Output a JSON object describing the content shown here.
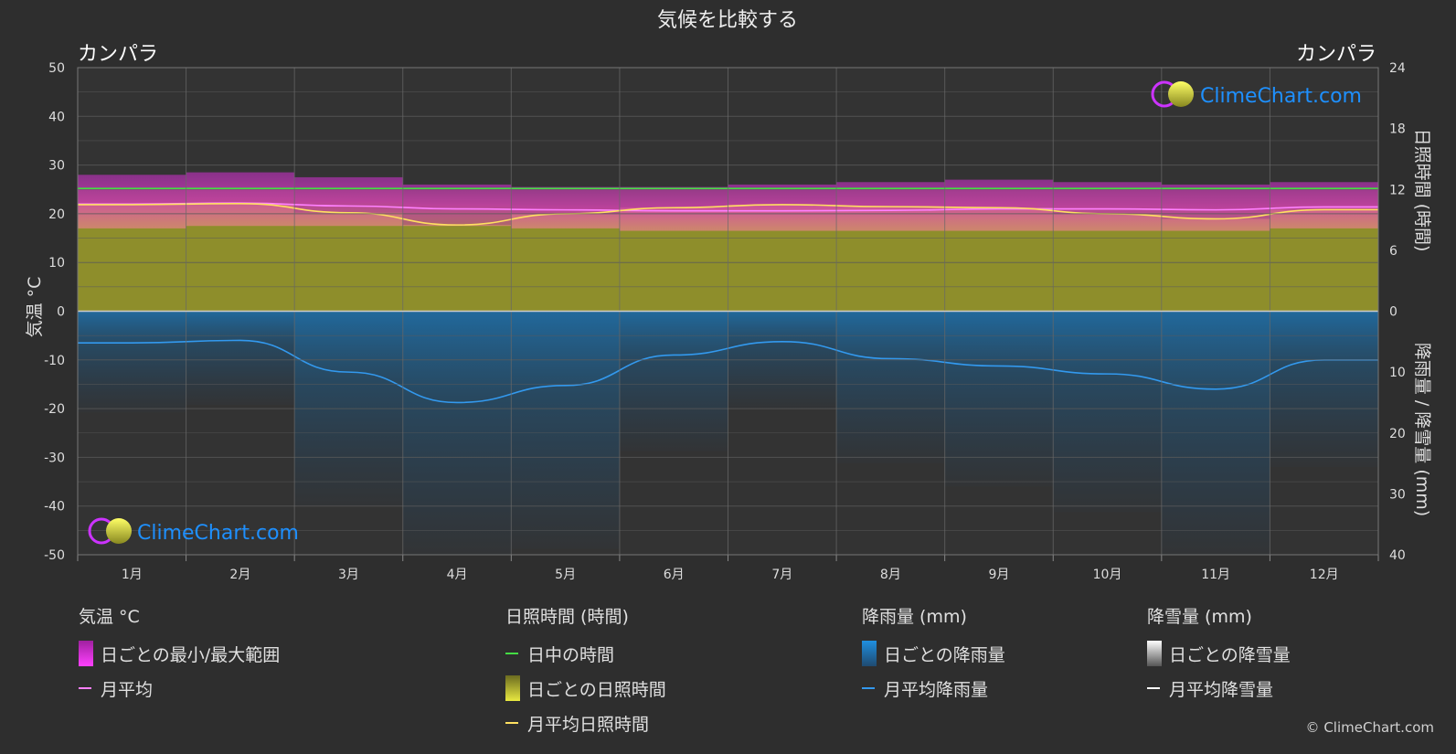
{
  "title": "気候を比較する",
  "location_left": "カンパラ",
  "location_right": "カンパラ",
  "axes": {
    "left_label": "気温 °C",
    "right_top_label": "日照時間 (時間)",
    "right_bottom_label": "降雨量 / 降雪量 (mm)",
    "left_ticks": [
      "50",
      "40",
      "30",
      "20",
      "10",
      "0",
      "-10",
      "-20",
      "-30",
      "-40",
      "-50"
    ],
    "right_top_ticks": [
      "24",
      "18",
      "12",
      "6",
      "0"
    ],
    "right_bottom_ticks": [
      "10",
      "20",
      "30",
      "40"
    ]
  },
  "brand": {
    "name": "ClimeChart.com",
    "copyright": "© ClimeChart.com",
    "accent": "#1e90ff"
  },
  "colors": {
    "background": "#2e2e2e",
    "temp_range": "#e040e0",
    "temp_avg": "#ff80ff",
    "daylight": "#44dd44",
    "sunshine": "#b5b52e",
    "sunshine_avg": "#ffe060",
    "rain": "#1f6fa8",
    "rain_avg": "#3399ee",
    "snow_avg": "#ffffff"
  },
  "chart_data": {
    "type": "area",
    "categories": [
      "1月",
      "2月",
      "3月",
      "4月",
      "5月",
      "6月",
      "7月",
      "8月",
      "9月",
      "10月",
      "11月",
      "12月"
    ],
    "temp_ylim": [
      -50,
      50
    ],
    "sun_ylim": [
      0,
      24
    ],
    "rain_ylim": [
      0,
      40
    ],
    "grid": true,
    "series": [
      {
        "name": "月平均",
        "axis": "temp",
        "values": [
          22.0,
          22.2,
          21.6,
          21.0,
          20.8,
          20.6,
          20.6,
          20.7,
          21.0,
          21.0,
          20.8,
          21.4
        ]
      },
      {
        "name": "日ごとの最小/最大範囲",
        "axis": "temp",
        "min": [
          17,
          17.5,
          17.5,
          17.5,
          17,
          16.5,
          16.5,
          16.5,
          16.5,
          16.5,
          16.5,
          17
        ],
        "max": [
          28,
          28.5,
          27.5,
          26,
          25.5,
          25.5,
          26,
          26.5,
          27,
          26.5,
          26,
          26.5
        ]
      },
      {
        "name": "日中の時間",
        "axis": "sun",
        "values": [
          12.1,
          12.1,
          12.1,
          12.1,
          12.1,
          12.1,
          12.1,
          12.1,
          12.1,
          12.1,
          12.1,
          12.1
        ]
      },
      {
        "name": "月平均日照時間",
        "axis": "sun",
        "values": [
          10.5,
          10.6,
          9.7,
          8.5,
          9.6,
          10.2,
          10.5,
          10.3,
          10.2,
          9.6,
          9.1,
          10.0
        ]
      },
      {
        "name": "月平均降雨量",
        "axis": "rain",
        "values": [
          5.2,
          4.8,
          10.0,
          15.0,
          12.2,
          7.2,
          5.0,
          7.8,
          9.0,
          10.3,
          12.8,
          8.0
        ]
      },
      {
        "name": "月平均降雪量",
        "axis": "rain",
        "values": [
          0,
          0,
          0,
          0,
          0,
          0,
          0,
          0,
          0,
          0,
          0,
          0
        ]
      }
    ]
  },
  "legend": {
    "temperature": {
      "head": "気温 °C",
      "range": "日ごとの最小/最大範囲",
      "avg": "月平均"
    },
    "sunshine": {
      "head": "日照時間 (時間)",
      "daylight": "日中の時間",
      "daily": "日ごとの日照時間",
      "avg": "月平均日照時間"
    },
    "rain": {
      "head": "降雨量 (mm)",
      "daily": "日ごとの降雨量",
      "avg": "月平均降雨量"
    },
    "snow": {
      "head": "降雪量 (mm)",
      "daily": "日ごとの降雪量",
      "avg": "月平均降雪量"
    }
  }
}
